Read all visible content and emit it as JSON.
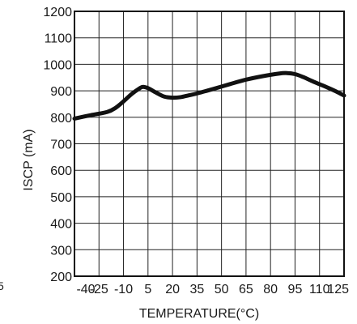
{
  "chart_data": {
    "type": "line",
    "title": "",
    "xlabel": "TEMPERATURE(°C)",
    "ylabel": "ISCP (mA)",
    "xlim": [
      -40,
      125
    ],
    "ylim": [
      200,
      1200
    ],
    "x_ticks": [
      -40,
      -25,
      -10,
      5,
      20,
      35,
      50,
      65,
      80,
      95,
      110,
      125
    ],
    "y_ticks": [
      200,
      300,
      400,
      500,
      600,
      700,
      800,
      900,
      1000,
      1100,
      1200
    ],
    "x_tick_labels": [
      "-40",
      "-25",
      "-10",
      "5",
      "20",
      "35",
      "50",
      "65",
      "80",
      "95",
      "110",
      "125"
    ],
    "y_tick_labels": [
      "200",
      "300",
      "400",
      "500",
      "600",
      "700",
      "800",
      "900",
      "1000",
      "1100",
      "1200"
    ],
    "grid": true,
    "series": [
      {
        "x": [
          -40,
          -30,
          -20,
          -15,
          -10,
          -5,
          0,
          2,
          5,
          10,
          15,
          20,
          25,
          30,
          35,
          45,
          55,
          65,
          75,
          85,
          90,
          95,
          100,
          105,
          110,
          115,
          120,
          125
        ],
        "y": [
          795,
          808,
          820,
          835,
          860,
          888,
          910,
          915,
          910,
          893,
          878,
          874,
          876,
          883,
          890,
          907,
          925,
          942,
          955,
          965,
          967,
          963,
          952,
          938,
          925,
          912,
          898,
          882
        ],
        "color": "#111111"
      }
    ]
  },
  "stray_text": "5"
}
